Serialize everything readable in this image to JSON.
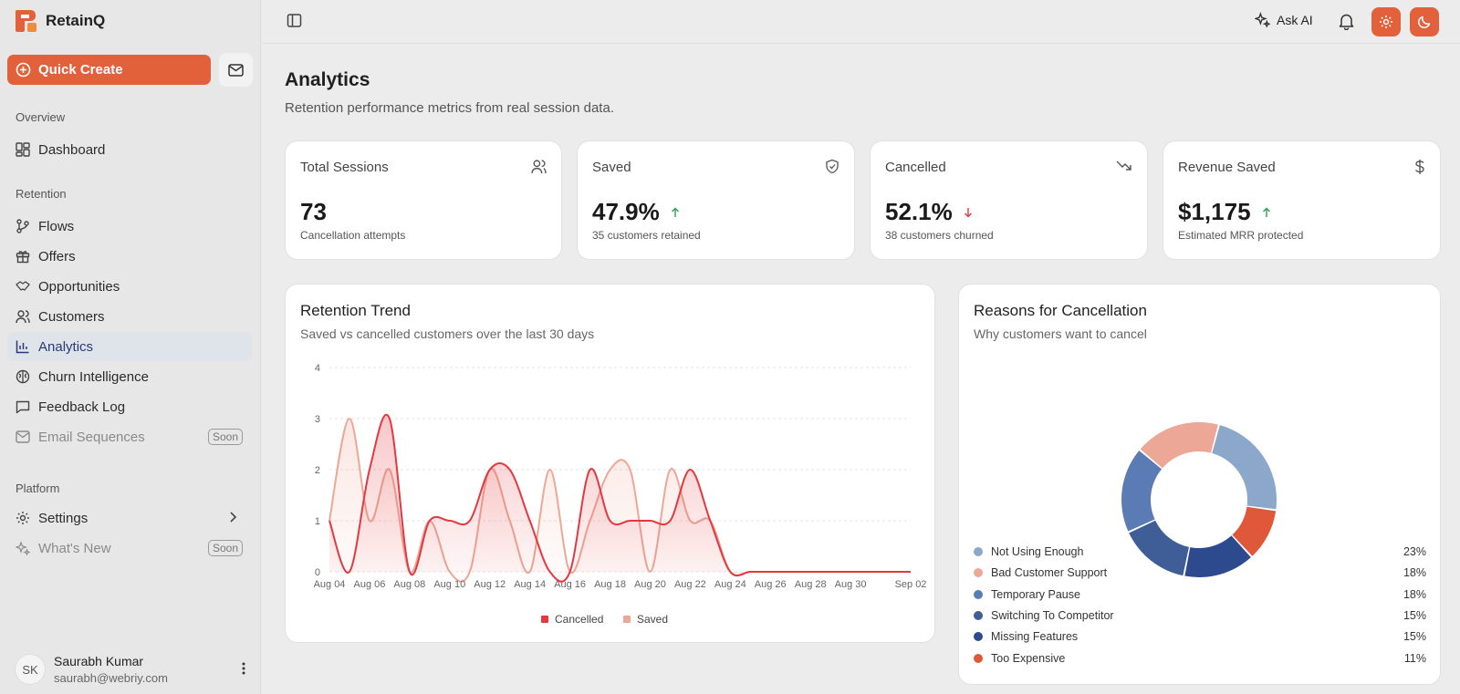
{
  "brand": {
    "name": "RetainQ"
  },
  "sidebar": {
    "quick_create": "Quick Create",
    "sections": {
      "overview": "Overview",
      "retention": "Retention",
      "platform": "Platform"
    },
    "items": {
      "dashboard": "Dashboard",
      "flows": "Flows",
      "offers": "Offers",
      "opportunities": "Opportunities",
      "customers": "Customers",
      "analytics": "Analytics",
      "churn": "Churn Intelligence",
      "feedback": "Feedback Log",
      "email": "Email Sequences",
      "settings": "Settings",
      "whats_new": "What's New"
    },
    "soon_badge": "Soon",
    "user": {
      "initials": "SK",
      "name": "Saurabh Kumar",
      "email": "saurabh@webriy.com"
    }
  },
  "topbar": {
    "ask_ai": "Ask AI"
  },
  "page": {
    "title": "Analytics",
    "subtitle": "Retention performance metrics from real session data."
  },
  "stats": {
    "total": {
      "title": "Total Sessions",
      "value": "73",
      "desc": "Cancellation attempts"
    },
    "saved": {
      "title": "Saved",
      "value": "47.9%",
      "desc": "35 customers retained"
    },
    "cancelled": {
      "title": "Cancelled",
      "value": "52.1%",
      "desc": "38 customers churned"
    },
    "revenue": {
      "title": "Revenue Saved",
      "value": "$1,175",
      "desc": "Estimated MRR protected"
    }
  },
  "trend": {
    "title": "Retention Trend",
    "subtitle": "Saved vs cancelled customers over the last 30 days"
  },
  "reasons": {
    "title": "Reasons for Cancellation",
    "subtitle": "Why customers want to cancel"
  },
  "colors": {
    "accent": "#e2603a",
    "cancelled": "#e5373f",
    "saved": "#eda797"
  },
  "chart_data": [
    {
      "type": "area",
      "categories": [
        "Aug 04",
        "Aug 05",
        "Aug 06",
        "Aug 07",
        "Aug 08",
        "Aug 09",
        "Aug 10",
        "Aug 11",
        "Aug 12",
        "Aug 13",
        "Aug 14",
        "Aug 15",
        "Aug 16",
        "Aug 17",
        "Aug 18",
        "Aug 19",
        "Aug 20",
        "Aug 21",
        "Aug 22",
        "Aug 23",
        "Aug 24",
        "Aug 25",
        "Aug 26",
        "Aug 27",
        "Aug 28",
        "Aug 29",
        "Aug 30",
        "Aug 31",
        "Sep 01",
        "Sep 02"
      ],
      "tick_labels": [
        "Aug 04",
        "Aug 06",
        "Aug 08",
        "Aug 10",
        "Aug 12",
        "Aug 14",
        "Aug 16",
        "Aug 18",
        "Aug 20",
        "Aug 22",
        "Aug 24",
        "Aug 26",
        "Aug 28",
        "Aug 30",
        "Sep 02"
      ],
      "yticks": [
        "0",
        "1",
        "2",
        "3",
        "4"
      ],
      "ylim": [
        0,
        4
      ],
      "series": [
        {
          "name": "Cancelled",
          "values": [
            1,
            0,
            2,
            3,
            0,
            1,
            1,
            1,
            2,
            2,
            1,
            0,
            0,
            2,
            1,
            1,
            1,
            1,
            2,
            1,
            0,
            0,
            0,
            0,
            0,
            0,
            0,
            0,
            0,
            0
          ]
        },
        {
          "name": "Saved",
          "values": [
            1,
            3,
            1,
            2,
            0,
            1,
            0,
            0,
            2,
            1,
            0,
            2,
            0,
            1,
            2,
            2,
            0,
            2,
            1,
            1,
            0,
            0,
            0,
            0,
            0,
            0,
            0,
            0,
            0,
            0
          ]
        }
      ],
      "legend": "bottom",
      "grid": true
    },
    {
      "type": "pie",
      "slices": [
        {
          "label": "Not Using Enough",
          "value": 23,
          "pct": "23%",
          "color": "#8ba7c9"
        },
        {
          "label": "Too Expensive",
          "value": 11,
          "pct": "11%",
          "color": "#e0583a"
        },
        {
          "label": "Missing Features",
          "value": 15,
          "pct": "15%",
          "color": "#2e4a8f"
        },
        {
          "label": "Switching To Competitor",
          "value": 15,
          "pct": "15%",
          "color": "#3f5e98"
        },
        {
          "label": "Temporary Pause",
          "value": 18,
          "pct": "18%",
          "color": "#5a7bb3"
        },
        {
          "label": "Bad Customer Support",
          "value": 18,
          "pct": "18%",
          "color": "#eda797"
        }
      ],
      "legend_order": [
        {
          "label": "Not Using Enough",
          "pct": "23%",
          "color": "#8ba7c9"
        },
        {
          "label": "Bad Customer Support",
          "pct": "18%",
          "color": "#eda797"
        },
        {
          "label": "Temporary Pause",
          "pct": "18%",
          "color": "#5a7bb3"
        },
        {
          "label": "Switching To Competitor",
          "pct": "15%",
          "color": "#3f5e98"
        },
        {
          "label": "Missing Features",
          "pct": "15%",
          "color": "#2e4a8f"
        },
        {
          "label": "Too Expensive",
          "pct": "11%",
          "color": "#e0583a"
        }
      ],
      "donut": true,
      "legend": "bottom"
    }
  ]
}
